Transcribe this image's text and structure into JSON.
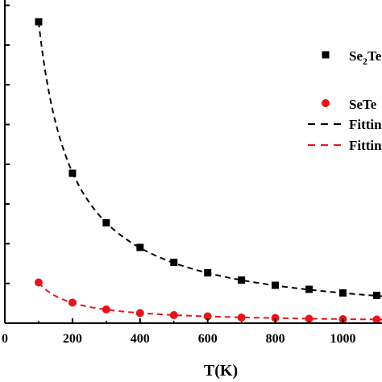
{
  "chart_data": {
    "type": "scatter",
    "xlabel": "T(K)",
    "x_ticks": [
      "0",
      "200",
      "400",
      "600",
      "800",
      "1000"
    ],
    "xlim": [
      0,
      1120
    ],
    "ylim": [
      0,
      1
    ],
    "series": [
      {
        "name": "Se2Te",
        "legend_main": "Se",
        "legend_sub": "2",
        "legend_rest": "Te",
        "marker": "square",
        "color": "#000000",
        "x": [
          100,
          200,
          300,
          400,
          500,
          600,
          700,
          800,
          900,
          1000,
          1100
        ],
        "y": [
          0.748,
          0.372,
          0.249,
          0.188,
          0.151,
          0.125,
          0.107,
          0.094,
          0.084,
          0.075,
          0.069
        ]
      },
      {
        "name": "SeTe",
        "legend_main": "SeTe",
        "marker": "circle",
        "color": "#e8141b",
        "x": [
          100,
          200,
          300,
          400,
          500,
          600,
          700,
          800,
          900,
          1000,
          1100
        ],
        "y": [
          0.101,
          0.051,
          0.034,
          0.025,
          0.02,
          0.017,
          0.014,
          0.013,
          0.011,
          0.01,
          0.009
        ]
      }
    ],
    "fits": [
      {
        "name": "Fitting",
        "color": "#000000",
        "style": "dashed",
        "a": 74.8
      },
      {
        "name": "Fitting",
        "color": "#e8141b",
        "style": "dashed",
        "a": 10.1
      }
    ]
  }
}
